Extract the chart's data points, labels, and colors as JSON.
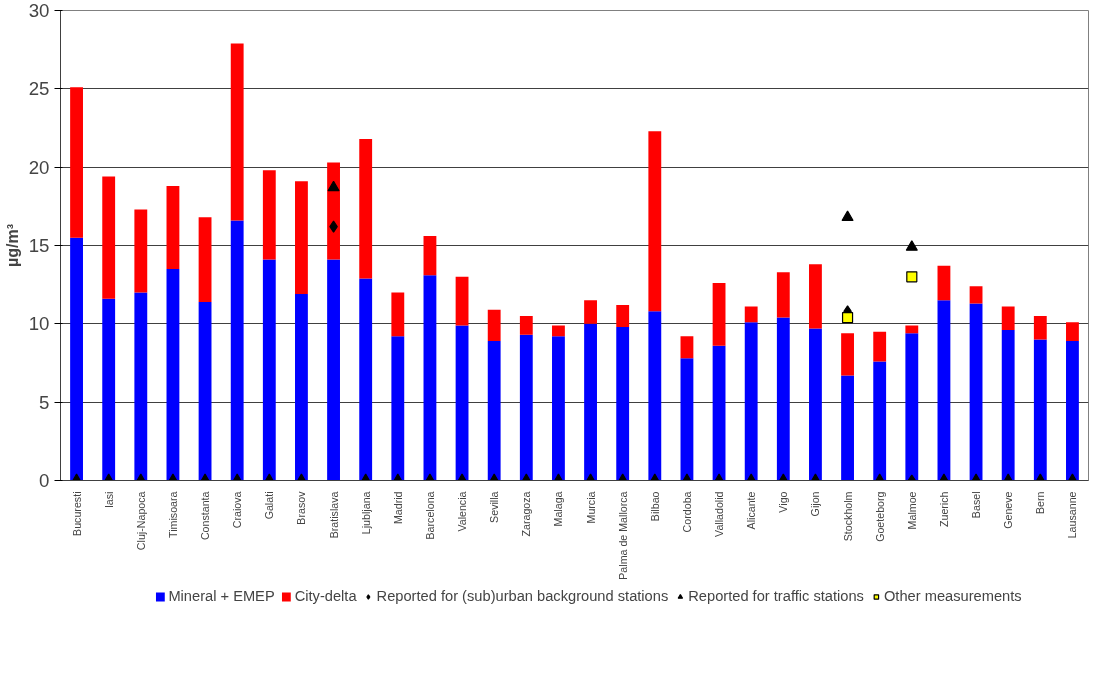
{
  "chart_data": {
    "type": "bar",
    "stacked": true,
    "ylabel": "µg/m³",
    "ylim": [
      0,
      30
    ],
    "yticks": [
      0,
      5,
      10,
      15,
      20,
      25,
      30
    ],
    "grid": "y",
    "legend": "bottom",
    "categories": [
      "Bucuresti",
      "Iasi",
      "Cluj-Napoca",
      "Timisoara",
      "Constanta",
      "Craiova",
      "Galati",
      "Brasov",
      "Bratislava",
      "Ljubljana",
      "Madrid",
      "Barcelona",
      "Valencia",
      "Sevilla",
      "Zaragoza",
      "Malaga",
      "Murcia",
      "Palma de Mallorca",
      "Bilbao",
      "Cordoba",
      "Valladolid",
      "Alicante",
      "Vigo",
      "Gijon",
      "Stockholm",
      "Goeteborg",
      "Malmoe",
      "Zuerich",
      "Basel",
      "Geneve",
      "Bern",
      "Lausanne"
    ],
    "series": [
      {
        "name": "Mineral + EMEP",
        "color": "#0000ff",
        "values": [
          15.5,
          11.6,
          12.0,
          13.5,
          11.4,
          16.6,
          14.1,
          11.9,
          14.1,
          12.9,
          9.2,
          13.1,
          9.9,
          8.9,
          9.3,
          9.2,
          10.0,
          9.8,
          10.8,
          7.8,
          8.6,
          10.1,
          10.4,
          9.7,
          6.7,
          7.6,
          9.4,
          11.5,
          11.3,
          9.6,
          9.0,
          8.9
        ]
      },
      {
        "name": "City-delta",
        "color": "#ff0000",
        "values": [
          9.6,
          7.8,
          5.3,
          5.3,
          5.4,
          11.3,
          5.7,
          7.2,
          6.2,
          8.9,
          2.8,
          2.5,
          3.1,
          2.0,
          1.2,
          0.7,
          1.5,
          1.4,
          11.5,
          1.4,
          4.0,
          1.0,
          2.9,
          4.1,
          2.7,
          1.9,
          0.5,
          2.2,
          1.1,
          1.5,
          1.5,
          1.2
        ]
      },
      {
        "name": "Reported for (sub)urban background stations",
        "type": "scatter",
        "marker": "diamond",
        "color": "#000000",
        "values": [
          null,
          null,
          null,
          null,
          null,
          null,
          null,
          null,
          16.2,
          null,
          null,
          null,
          null,
          null,
          null,
          null,
          null,
          null,
          null,
          null,
          null,
          null,
          null,
          null,
          10.8,
          null,
          0,
          null,
          null,
          null,
          null,
          null
        ]
      },
      {
        "name": "Reported for traffic stations",
        "type": "scatter",
        "marker": "triangle",
        "color": "#000000",
        "values": [
          0,
          0,
          0,
          0,
          0,
          0,
          0,
          0,
          18.7,
          0,
          0,
          0,
          0,
          0,
          0,
          0,
          0,
          0,
          0,
          0,
          0,
          0,
          0,
          0,
          16.8,
          0,
          14.9,
          0,
          0,
          0,
          0,
          0
        ]
      },
      {
        "name": "Other measurements",
        "type": "scatter",
        "marker": "square",
        "color": "#ffff00",
        "values": [
          null,
          null,
          null,
          null,
          null,
          null,
          null,
          null,
          null,
          null,
          null,
          null,
          null,
          null,
          null,
          null,
          null,
          null,
          null,
          null,
          null,
          null,
          null,
          null,
          10.4,
          null,
          13.0,
          null,
          null,
          null,
          null,
          null
        ]
      }
    ]
  }
}
